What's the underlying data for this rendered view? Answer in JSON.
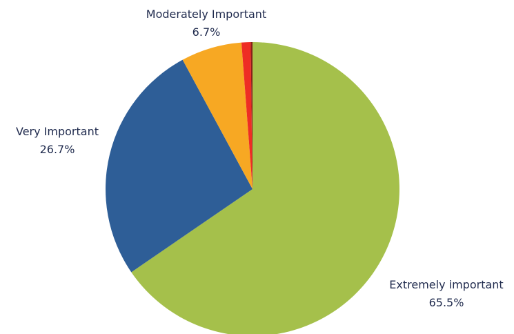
{
  "chart_data": {
    "type": "pie",
    "title": "",
    "start_angle_deg": 0,
    "direction": "clockwise",
    "slices": [
      {
        "label": "Extremely important",
        "value": 65.5,
        "display": "65.5%",
        "color": "#a5c04b"
      },
      {
        "label": "Very Important",
        "value": 26.7,
        "display": "26.7%",
        "color": "#2e5e97"
      },
      {
        "label": "Moderately Important",
        "value": 6.7,
        "display": "6.7%",
        "color": "#f7a823"
      },
      {
        "label": "",
        "value": 1.0,
        "display": "",
        "color": "#ee2d24"
      },
      {
        "label": "",
        "value": 0.2,
        "display": "",
        "color": "#8b1f1a"
      }
    ],
    "legend": "none",
    "data_labels": "outside"
  }
}
